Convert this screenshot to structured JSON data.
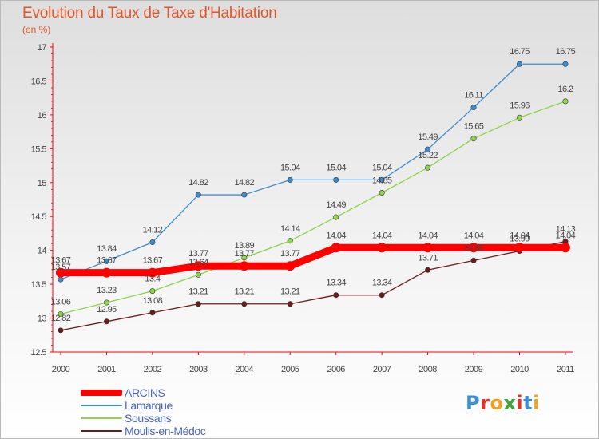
{
  "header": {
    "title": "Evolution du Taux de Taxe d'Habitation",
    "subtitle": "(en %)"
  },
  "logo": {
    "text": "Proxiti",
    "colors": [
      "#3a8fd6",
      "#e2332b",
      "#f0a020",
      "#3aa83a",
      "#e2332b",
      "#3a8fd6",
      "#f0a020"
    ]
  },
  "chart_data": {
    "type": "line",
    "title": "Evolution du Taux de Taxe d'Habitation",
    "subtitle": "(en %)",
    "xlabel": "",
    "ylabel": "",
    "x": [
      "2000",
      "2001",
      "2002",
      "2003",
      "2004",
      "2005",
      "2006",
      "2007",
      "2008",
      "2009",
      "2010",
      "2011"
    ],
    "yticks": [
      "12.5",
      "13",
      "13.5",
      "14",
      "14.5",
      "15",
      "15.5",
      "16",
      "16.5",
      "17"
    ],
    "ylim": [
      12.5,
      17
    ],
    "grid": false,
    "legend_position": "bottom-left",
    "series": [
      {
        "name": "ARCINS",
        "color": "#ff0000",
        "values": [
          13.67,
          13.67,
          13.67,
          13.77,
          13.77,
          13.77,
          14.04,
          14.04,
          14.04,
          14.04,
          14.04,
          14.04
        ],
        "labels": [
          "13.67",
          "13.67",
          "13.67",
          "13.77",
          "13.77",
          "13.77",
          "14.04",
          "14.04",
          "14.04",
          "14.04",
          "14.04",
          "14.04"
        ]
      },
      {
        "name": "Lamarque",
        "color": "#3c8dd0",
        "values": [
          13.57,
          13.84,
          14.12,
          14.82,
          14.82,
          15.04,
          15.04,
          15.04,
          15.49,
          16.11,
          16.75,
          16.75
        ],
        "labels": [
          "13.57",
          "13.84",
          "14.12",
          "14.82",
          "14.82",
          "15.04",
          "15.04",
          "15.04",
          "15.49",
          "16.11",
          "16.75",
          "16.75"
        ]
      },
      {
        "name": "Soussans",
        "color": "#8ed44a",
        "values": [
          13.06,
          13.23,
          13.4,
          13.64,
          13.89,
          14.14,
          14.49,
          14.85,
          15.22,
          15.65,
          15.96,
          16.2
        ],
        "labels": [
          "13.06",
          "13.23",
          "13.4",
          "13.64",
          "13.89",
          "14.14",
          "14.49",
          "14.85",
          "15.22",
          "15.65",
          "15.96",
          "16.2"
        ]
      },
      {
        "name": "Moulis-en-Médoc",
        "color": "#6e1a1a",
        "values": [
          12.82,
          12.95,
          13.08,
          13.21,
          13.21,
          13.21,
          13.34,
          13.34,
          13.71,
          13.85,
          13.99,
          14.13
        ],
        "labels": [
          "12.82",
          "12.95",
          "13.08",
          "13.21",
          "13.21",
          "13.21",
          "13.34",
          "13.34",
          "13.71",
          "13.85",
          "13.99",
          "14.13"
        ]
      }
    ]
  }
}
